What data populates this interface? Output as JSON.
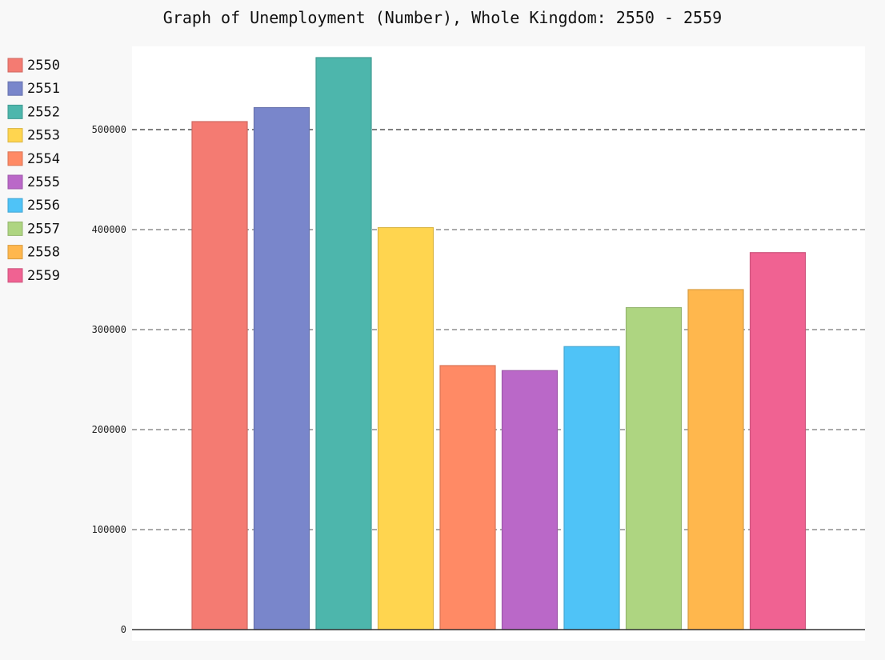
{
  "chart_data": {
    "type": "bar",
    "title": "Graph of Unemployment (Number), Whole Kingdom: 2550 - 2559",
    "xlabel": "",
    "ylabel": "",
    "ylim": [
      0,
      575000
    ],
    "y_ticks": [
      0,
      100000,
      200000,
      300000,
      400000,
      500000
    ],
    "y_tick_labels": [
      "0",
      "100000",
      "200000",
      "300000",
      "400000",
      "500000"
    ],
    "grid": true,
    "legend_position": "left",
    "series": [
      {
        "name": "2550",
        "value": 508000,
        "color": "#F47B72"
      },
      {
        "name": "2551",
        "value": 522000,
        "color": "#7986CB"
      },
      {
        "name": "2552",
        "value": 572000,
        "color": "#4DB6AC"
      },
      {
        "name": "2553",
        "value": 402000,
        "color": "#FFD54F"
      },
      {
        "name": "2554",
        "value": 264000,
        "color": "#FF8A65"
      },
      {
        "name": "2555",
        "value": 259000,
        "color": "#BA68C8"
      },
      {
        "name": "2556",
        "value": 283000,
        "color": "#4FC3F7"
      },
      {
        "name": "2557",
        "value": 322000,
        "color": "#AED581"
      },
      {
        "name": "2558",
        "value": 340000,
        "color": "#FFB74D"
      },
      {
        "name": "2559",
        "value": 377000,
        "color": "#F06292"
      }
    ]
  }
}
